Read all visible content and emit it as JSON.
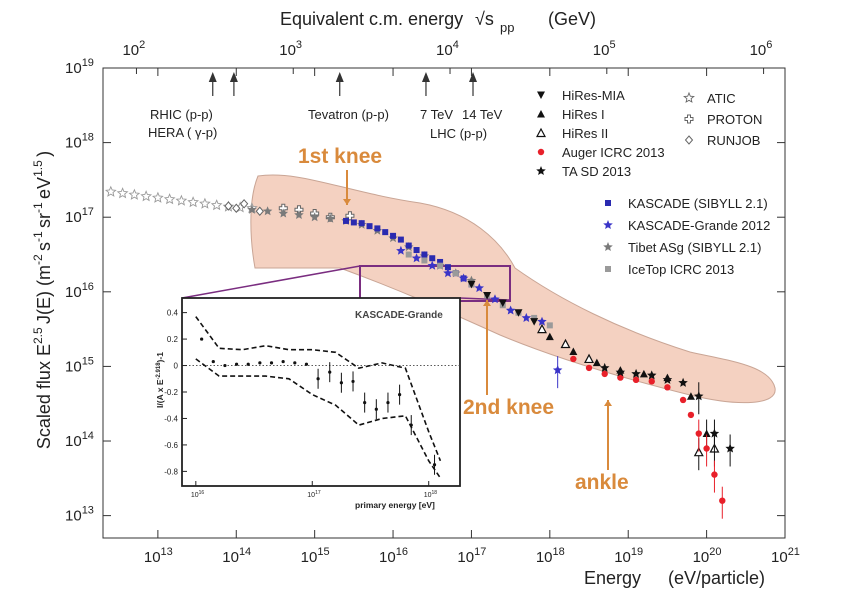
{
  "chart_data": {
    "type": "scatter",
    "title": "",
    "top_axis": {
      "label": "Equivalent c.m. energy",
      "label_unit": "(GeV)",
      "sqrt_symbol": "√s",
      "sqrt_sub": "pp",
      "ticks": [
        {
          "value": 100,
          "base": "10",
          "exp": "2"
        },
        {
          "value": 1000,
          "base": "10",
          "exp": "3"
        },
        {
          "value": 10000,
          "base": "10",
          "exp": "4"
        },
        {
          "value": 100000,
          "base": "10",
          "exp": "5"
        },
        {
          "value": 1000000,
          "base": "10",
          "exp": "6"
        }
      ]
    },
    "xaxis": {
      "label": "Energy",
      "unit": "(eV/particle)",
      "scale": "log",
      "xlim_exp": [
        12.3,
        21
      ],
      "ticks": [
        {
          "exp": 13,
          "label_base": "10",
          "label_exp": "13"
        },
        {
          "exp": 14,
          "label_base": "10",
          "label_exp": "14"
        },
        {
          "exp": 15,
          "label_base": "10",
          "label_exp": "15"
        },
        {
          "exp": 16,
          "label_base": "10",
          "label_exp": "16"
        },
        {
          "exp": 17,
          "label_base": "10",
          "label_exp": "17"
        },
        {
          "exp": 18,
          "label_base": "10",
          "label_exp": "18"
        },
        {
          "exp": 19,
          "label_base": "10",
          "label_exp": "19"
        },
        {
          "exp": 20,
          "label_base": "10",
          "label_exp": "20"
        },
        {
          "exp": 21,
          "label_base": "10",
          "label_exp": "21"
        }
      ]
    },
    "yaxis": {
      "label_parts": [
        "Scaled flux",
        "E",
        "2.5",
        "J(E)",
        "(m",
        "-2",
        "s",
        "-1",
        "sr",
        "-1",
        "eV",
        "1.5",
        ")"
      ],
      "scale": "log",
      "ylim_exp": [
        12.7,
        19
      ],
      "ticks": [
        {
          "exp": 13,
          "label_base": "10",
          "label_exp": "13"
        },
        {
          "exp": 14,
          "label_base": "10",
          "label_exp": "14"
        },
        {
          "exp": 15,
          "label_base": "10",
          "label_exp": "15"
        },
        {
          "exp": 16,
          "label_base": "10",
          "label_exp": "16"
        },
        {
          "exp": 17,
          "label_base": "10",
          "label_exp": "17"
        },
        {
          "exp": 18,
          "label_base": "10",
          "label_exp": "18"
        },
        {
          "exp": 19,
          "label_base": "10",
          "label_exp": "19"
        }
      ]
    },
    "accelerators": [
      {
        "name": "RHIC (p-p)",
        "lab_energy_exp": 13.7
      },
      {
        "name": "HERA ( γ-p)",
        "lab_energy_exp": 13.97
      },
      {
        "name": "Tevatron (p-p)",
        "lab_energy_exp": 15.32
      },
      {
        "name": "7 TeV",
        "lab_energy_exp": 16.42
      },
      {
        "name": "14 TeV",
        "lab_energy_exp": 17.02
      }
    ],
    "accelerator_group_label": "LHC (p-p)",
    "annotations": [
      {
        "text": "1st knee",
        "energy_exp": 15.5,
        "flux_exp": 17.0,
        "color": "#d98a3c"
      },
      {
        "text": "2nd knee",
        "energy_exp": 17.3,
        "flux_exp": 15.75,
        "color": "#d98a3c"
      },
      {
        "text": "ankle",
        "energy_exp": 18.6,
        "flux_exp": 14.8,
        "color": "#d98a3c"
      }
    ],
    "legend_left": [
      {
        "label": "HiRes-MIA",
        "marker": "triangle-down",
        "color": "#111111"
      },
      {
        "label": "HiRes I",
        "marker": "triangle-up",
        "color": "#111111"
      },
      {
        "label": "HiRes II",
        "marker": "triangle-open",
        "color": "#111111"
      },
      {
        "label": "Auger ICRC 2013",
        "marker": "circle",
        "color": "#e8202a"
      },
      {
        "label": "TA SD 2013",
        "marker": "star",
        "color": "#111111"
      }
    ],
    "legend_right": [
      {
        "label": "ATIC",
        "marker": "star-open",
        "color": "#666666"
      },
      {
        "label": "PROTON",
        "marker": "cross-open",
        "color": "#666666"
      },
      {
        "label": "RUNJOB",
        "marker": "diamond-open",
        "color": "#666666"
      }
    ],
    "legend_lower": [
      {
        "label": "KASCADE (SIBYLL 2.1)",
        "marker": "square",
        "color": "#2a2ab0"
      },
      {
        "label": "KASCADE-Grande 2012",
        "marker": "star",
        "color": "#3a34c8"
      },
      {
        "label": "Tibet ASg (SIBYLL 2.1)",
        "marker": "star",
        "color": "#7a7a7a"
      },
      {
        "label": "IceTop ICRC 2013",
        "marker": "square",
        "color": "#9a9a9a"
      }
    ],
    "series": [
      {
        "name": "ATIC",
        "color": "#9a9a9a",
        "marker": "star-open",
        "x": [
          12.4,
          12.55,
          12.7,
          12.85,
          13.0,
          13.15,
          13.3,
          13.45,
          13.6,
          13.75,
          13.9,
          14.05,
          14.2
        ],
        "y": [
          17.34,
          17.32,
          17.3,
          17.28,
          17.26,
          17.24,
          17.22,
          17.2,
          17.18,
          17.16,
          17.14,
          17.13,
          17.12
        ]
      },
      {
        "name": "PROTON",
        "color": "#666666",
        "marker": "cross-open",
        "x": [
          14.6,
          14.8,
          15.0,
          15.2,
          15.45
        ],
        "y": [
          17.12,
          17.1,
          17.05,
          17.0,
          17.02
        ]
      },
      {
        "name": "RUNJOB",
        "color": "#666666",
        "marker": "diamond-open",
        "x": [
          13.9,
          14.0,
          14.1,
          14.3
        ],
        "y": [
          17.15,
          17.12,
          17.18,
          17.08
        ]
      },
      {
        "name": "Tibet ASg (SIBYLL 2.1)",
        "color": "#7a7a7a",
        "marker": "star",
        "x": [
          14.2,
          14.4,
          14.6,
          14.8,
          15.0,
          15.2,
          15.4,
          15.6,
          15.8,
          16.0,
          16.2,
          16.4,
          16.6,
          16.8,
          17.0
        ],
        "y": [
          17.1,
          17.08,
          17.05,
          17.03,
          17.0,
          16.98,
          16.95,
          16.9,
          16.82,
          16.72,
          16.6,
          16.48,
          16.35,
          16.25,
          16.15
        ]
      },
      {
        "name": "KASCADE (SIBYLL 2.1)",
        "color": "#2a2ab0",
        "marker": "square",
        "x": [
          15.4,
          15.5,
          15.6,
          15.7,
          15.8,
          15.9,
          16.0,
          16.1,
          16.2,
          16.3,
          16.4,
          16.5,
          16.6,
          16.7,
          16.8,
          16.9,
          17.0
        ],
        "y": [
          16.95,
          16.93,
          16.92,
          16.88,
          16.85,
          16.8,
          16.75,
          16.7,
          16.62,
          16.56,
          16.5,
          16.45,
          16.4,
          16.33,
          16.25,
          16.18,
          16.1
        ]
      },
      {
        "name": "KASCADE-Grande 2012",
        "color": "#3a34c8",
        "marker": "star",
        "x": [
          16.1,
          16.3,
          16.5,
          16.7,
          16.9,
          17.1,
          17.3,
          17.5,
          17.7,
          17.9,
          18.1
        ],
        "y": [
          16.55,
          16.45,
          16.35,
          16.25,
          16.18,
          16.05,
          15.9,
          15.75,
          15.65,
          15.6,
          14.95
        ]
      },
      {
        "name": "IceTop ICRC 2013",
        "color": "#9a9a9a",
        "marker": "square",
        "x": [
          16.2,
          16.4,
          16.6,
          16.8,
          17.0,
          17.2,
          17.4,
          17.6,
          17.8,
          18.0
        ],
        "y": [
          16.5,
          16.42,
          16.35,
          16.25,
          16.1,
          15.95,
          15.82,
          15.72,
          15.65,
          15.55
        ]
      },
      {
        "name": "HiRes-MIA",
        "color": "#111111",
        "marker": "triangle-down",
        "x": [
          17.0,
          17.2,
          17.4,
          17.6,
          17.8
        ],
        "y": [
          16.1,
          15.95,
          15.85,
          15.72,
          15.6
        ]
      },
      {
        "name": "HiRes I",
        "color": "#111111",
        "marker": "triangle-up",
        "x": [
          18.0,
          18.3,
          18.6,
          18.9,
          19.2,
          19.5,
          19.8,
          20.0
        ],
        "y": [
          15.4,
          15.2,
          15.05,
          14.95,
          14.9,
          14.85,
          14.6,
          14.1
        ]
      },
      {
        "name": "HiRes II",
        "color": "#111111",
        "marker": "triangle-open",
        "x": [
          17.9,
          18.2,
          18.5,
          19.9,
          20.1
        ],
        "y": [
          15.5,
          15.3,
          15.1,
          13.85,
          13.9
        ]
      },
      {
        "name": "Auger ICRC 2013",
        "color": "#e8202a",
        "marker": "circle",
        "x": [
          18.3,
          18.5,
          18.7,
          18.9,
          19.1,
          19.3,
          19.5,
          19.7,
          19.8,
          19.9,
          20.0,
          20.1,
          20.2
        ],
        "y": [
          15.1,
          14.98,
          14.9,
          14.85,
          14.82,
          14.8,
          14.72,
          14.55,
          14.35,
          14.1,
          13.9,
          13.55,
          13.2
        ]
      },
      {
        "name": "TA SD 2013",
        "color": "#111111",
        "marker": "star",
        "x": [
          18.7,
          18.9,
          19.1,
          19.3,
          19.5,
          19.7,
          19.9,
          20.1,
          20.3
        ],
        "y": [
          14.98,
          14.92,
          14.9,
          14.88,
          14.82,
          14.78,
          14.6,
          14.1,
          13.9
        ]
      }
    ],
    "inset": {
      "title": "KASCADE-Grande",
      "xlabel": "primary energy [eV]",
      "ylabel": "I/(A x E^-2.918)-1",
      "ylabel_main": "I/(A x E",
      "ylabel_sup": "-2.918",
      "ylabel_tail": ")-1",
      "ylim": [
        -0.85,
        0.45
      ],
      "xlim_exp": [
        15.95,
        18.2
      ],
      "y_ticks": [
        "0.4",
        "0.2",
        "0",
        "-0.2",
        "-0.4",
        "-0.6",
        "-0.8"
      ],
      "y_tick_values": [
        0.4,
        0.2,
        0,
        -0.2,
        -0.4,
        -0.6,
        -0.8
      ],
      "x_ticks": [
        {
          "exp": 16,
          "base": "10",
          "sup": "16"
        },
        {
          "exp": 17,
          "base": "10",
          "sup": "17"
        },
        {
          "exp": 18,
          "base": "10",
          "sup": "18"
        }
      ],
      "points_x": [
        16.05,
        16.15,
        16.25,
        16.35,
        16.45,
        16.55,
        16.65,
        16.75,
        16.85,
        16.95,
        17.05,
        17.15,
        17.25,
        17.35,
        17.45,
        17.55,
        17.65,
        17.75,
        17.85,
        18.05
      ],
      "points_y": [
        0.2,
        0.03,
        0.0,
        0.01,
        0.01,
        0.02,
        0.02,
        0.03,
        0.02,
        0.01,
        -0.1,
        -0.05,
        -0.13,
        -0.12,
        -0.28,
        -0.33,
        -0.28,
        -0.22,
        -0.45,
        -0.75
      ],
      "upper_band_x": [
        16.0,
        16.2,
        16.4,
        16.6,
        16.8,
        17.0,
        17.2,
        17.4,
        17.6,
        17.8,
        18.0,
        18.1
      ],
      "upper_band_y": [
        0.37,
        0.13,
        0.12,
        0.15,
        0.12,
        0.12,
        0.1,
        -0.02,
        0.02,
        -0.02,
        -0.5,
        -0.72
      ],
      "lower_band_x": [
        16.0,
        16.2,
        16.4,
        16.6,
        16.8,
        17.0,
        17.2,
        17.4,
        17.6,
        17.8,
        18.0,
        18.1
      ],
      "lower_band_y": [
        0.05,
        -0.08,
        -0.08,
        -0.08,
        -0.1,
        -0.22,
        -0.3,
        -0.45,
        -0.4,
        -0.38,
        -0.72,
        -0.85
      ]
    }
  },
  "colors": {
    "leg_fill": "#f2c9b6",
    "leg_stroke": "#c9a595",
    "zoom_box": "#7a2d80",
    "orange": "#d98a3c"
  }
}
